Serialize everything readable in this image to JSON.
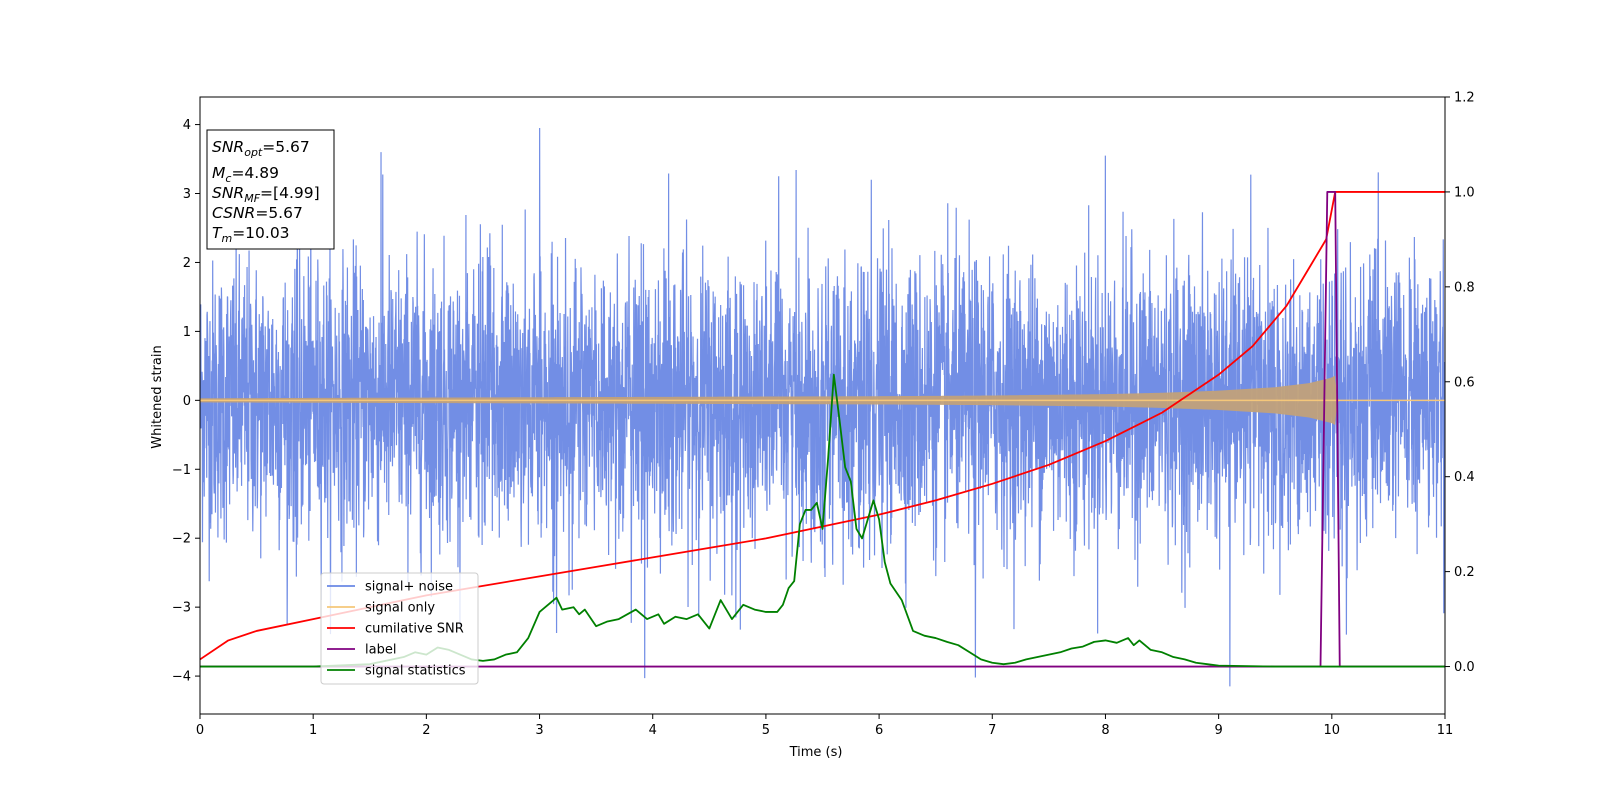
{
  "chart_data": {
    "type": "line",
    "xlabel": "Time (s)",
    "ylabel": "Whitened strain",
    "xlim": [
      0,
      11
    ],
    "ylim": [
      -4.55,
      4.4
    ],
    "y2lim": [
      -0.1,
      1.2
    ],
    "xticks": [
      0,
      1,
      2,
      3,
      4,
      5,
      6,
      7,
      8,
      9,
      10,
      11
    ],
    "yticks": [
      -4,
      -3,
      -2,
      -1,
      0,
      1,
      2,
      3,
      4
    ],
    "y2ticks": [
      "0.0",
      "0.2",
      "0.4",
      "0.6",
      "0.8",
      "1.0",
      "1.2"
    ],
    "xtick_labels": [
      "0",
      "1",
      "2",
      "3",
      "4",
      "5",
      "6",
      "7",
      "8",
      "9",
      "10",
      "11"
    ],
    "ytick_labels": [
      "−4",
      "−3",
      "−2",
      "−1",
      "0",
      "1",
      "2",
      "3",
      "4"
    ],
    "grid": false,
    "legend_position": "lower-left",
    "colors": {
      "signal_noise": "#6a88e4",
      "signal_only": "#f5c77a",
      "overlap": "#c1a17a",
      "cumulative_snr": "#ff0000",
      "label": "#800080",
      "signal_statistics": "#008000"
    },
    "annotations": {
      "snr_opt": {
        "base": "SNR",
        "sub": "opt",
        "value": "=5.67"
      },
      "mc": {
        "base": "M",
        "sub": "c",
        "value": "=4.89"
      },
      "snr_mf": {
        "base": "SNR",
        "sub": "MF",
        "value": "=[4.99]"
      },
      "csnr": {
        "base": "CSNR",
        "sub": "",
        "value": "=5.67"
      },
      "tm": {
        "base": "T",
        "sub": "m",
        "value": "=10.03"
      }
    },
    "series": [
      {
        "name": "signal+ noise",
        "axis": "left",
        "description_style": "dense noise, approx. zero mean, unit variance, spikes to about ±4",
        "noise_std": 1.0,
        "noise_peaks": [
          [
            3.0,
            3.95
          ],
          [
            9.1,
            -4.15
          ],
          [
            3.93,
            -4.03
          ],
          [
            6.85,
            -4.02
          ],
          [
            1.6,
            3.6
          ],
          [
            8.0,
            3.55
          ]
        ]
      },
      {
        "name": "signal only",
        "axis": "left",
        "description_style": "chirp; amplitude envelope grows toward merger",
        "envelope": {
          "x": [
            0,
            2,
            4,
            6,
            7,
            8,
            8.5,
            9,
            9.5,
            9.8,
            10.0,
            10.03,
            10.05,
            11
          ],
          "y": [
            0.03,
            0.04,
            0.05,
            0.06,
            0.07,
            0.09,
            0.11,
            0.14,
            0.19,
            0.25,
            0.33,
            0.36,
            0.0,
            0.0
          ]
        }
      },
      {
        "name": "cumilative SNR",
        "axis": "right",
        "x": [
          0,
          0.25,
          0.5,
          1,
          1.5,
          2,
          2.5,
          3,
          3.5,
          4,
          4.5,
          5,
          5.5,
          6,
          6.5,
          7,
          7.5,
          8,
          8.5,
          9,
          9.3,
          9.6,
          9.8,
          9.95,
          10.03,
          11
        ],
        "y": [
          0.015,
          0.055,
          0.075,
          0.1,
          0.125,
          0.15,
          0.17,
          0.19,
          0.21,
          0.23,
          0.25,
          0.27,
          0.295,
          0.32,
          0.35,
          0.385,
          0.425,
          0.475,
          0.535,
          0.615,
          0.675,
          0.76,
          0.84,
          0.9,
          1.0,
          1.0
        ]
      },
      {
        "name": "label",
        "axis": "right",
        "x": [
          0,
          9.9,
          9.96,
          10.03,
          10.07,
          11
        ],
        "y": [
          0.0,
          0.0,
          1.0,
          1.0,
          0.0,
          0.0
        ]
      },
      {
        "name": "signal statistics",
        "axis": "right",
        "x": [
          0,
          0.5,
          1,
          1.5,
          1.8,
          1.9,
          2.0,
          2.1,
          2.2,
          2.3,
          2.4,
          2.5,
          2.6,
          2.7,
          2.8,
          2.9,
          3.0,
          3.05,
          3.15,
          3.2,
          3.3,
          3.35,
          3.4,
          3.5,
          3.6,
          3.7,
          3.85,
          3.95,
          4.05,
          4.1,
          4.2,
          4.3,
          4.4,
          4.5,
          4.6,
          4.7,
          4.8,
          4.9,
          5.0,
          5.1,
          5.15,
          5.2,
          5.25,
          5.3,
          5.35,
          5.4,
          5.45,
          5.5,
          5.55,
          5.6,
          5.65,
          5.7,
          5.75,
          5.8,
          5.85,
          5.9,
          5.95,
          6.0,
          6.05,
          6.1,
          6.2,
          6.3,
          6.4,
          6.5,
          6.6,
          6.7,
          6.8,
          6.9,
          7.0,
          7.1,
          7.2,
          7.3,
          7.4,
          7.5,
          7.6,
          7.7,
          7.8,
          7.9,
          8.0,
          8.1,
          8.2,
          8.25,
          8.3,
          8.4,
          8.5,
          8.6,
          8.7,
          8.8,
          8.9,
          9.0,
          9.5,
          10.0,
          10.5,
          11
        ],
        "y": [
          -0.0,
          0.0,
          0.0,
          0.005,
          0.02,
          0.03,
          0.025,
          0.04,
          0.035,
          0.025,
          0.015,
          0.012,
          0.015,
          0.025,
          0.03,
          0.06,
          0.115,
          0.125,
          0.145,
          0.12,
          0.125,
          0.11,
          0.12,
          0.085,
          0.095,
          0.1,
          0.12,
          0.1,
          0.11,
          0.09,
          0.105,
          0.1,
          0.11,
          0.08,
          0.14,
          0.1,
          0.13,
          0.12,
          0.115,
          0.115,
          0.13,
          0.165,
          0.18,
          0.3,
          0.33,
          0.33,
          0.345,
          0.29,
          0.44,
          0.615,
          0.52,
          0.42,
          0.39,
          0.29,
          0.27,
          0.31,
          0.35,
          0.31,
          0.22,
          0.175,
          0.14,
          0.075,
          0.065,
          0.06,
          0.052,
          0.045,
          0.03,
          0.015,
          0.008,
          0.005,
          0.008,
          0.015,
          0.02,
          0.025,
          0.03,
          0.038,
          0.042,
          0.052,
          0.055,
          0.05,
          0.06,
          0.045,
          0.055,
          0.035,
          0.03,
          0.02,
          0.015,
          0.008,
          0.005,
          0.002,
          0.0,
          0.0,
          0.0,
          0.0
        ]
      }
    ]
  }
}
